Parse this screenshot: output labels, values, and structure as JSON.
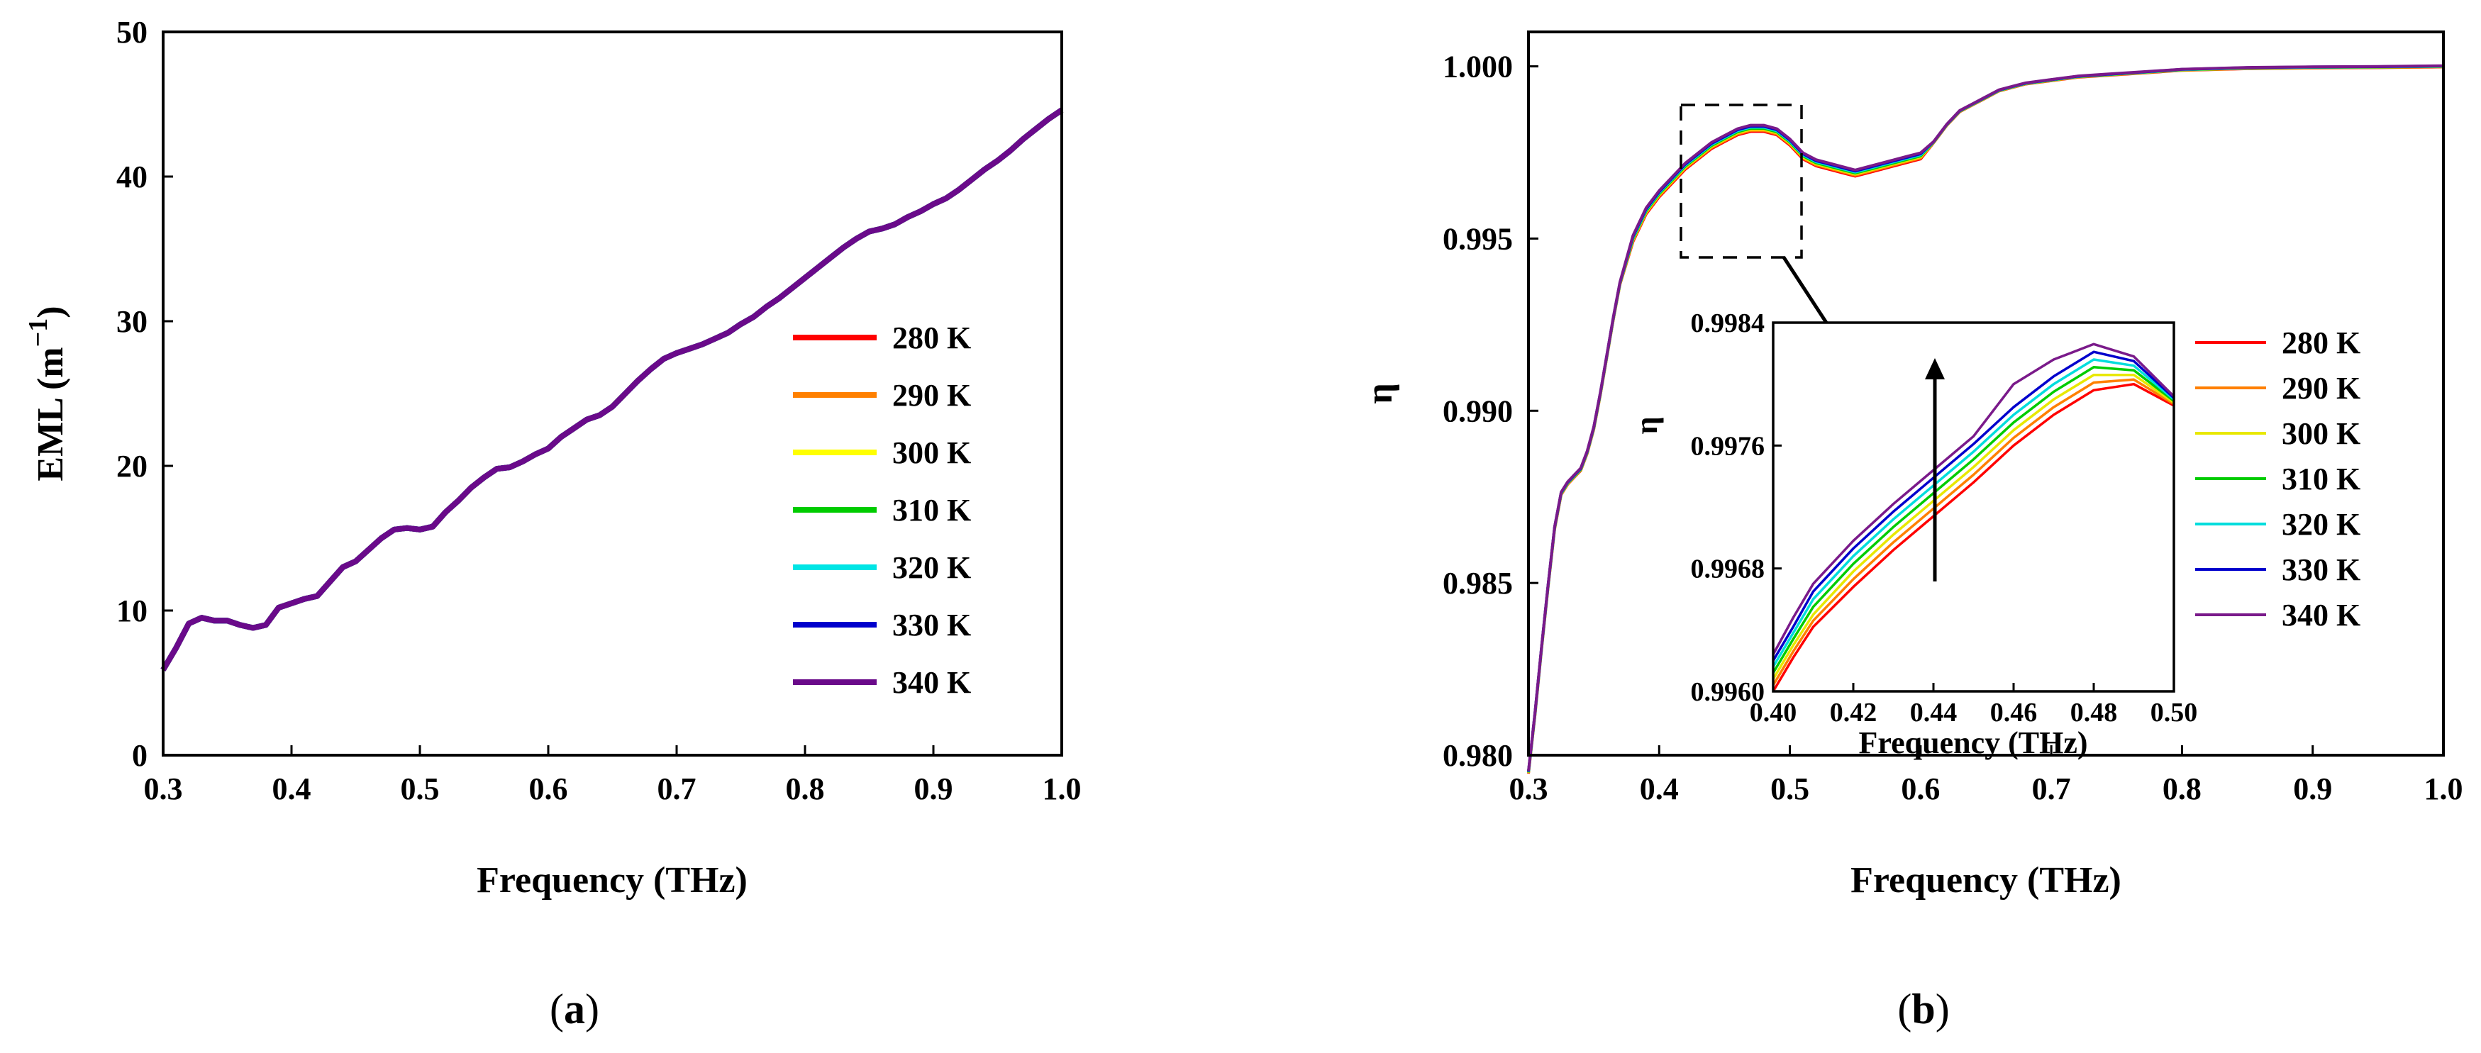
{
  "chart_data": [
    {
      "panel": "a",
      "type": "line",
      "panel_label": "a",
      "xlabel": "Frequency (THz)",
      "ylabel": "EML (m",
      "ylabel_sup": "−1",
      "ylabel_close": ")",
      "xlim": [
        0.3,
        1.0
      ],
      "ylim": [
        0,
        50
      ],
      "xticks": [
        "0.3",
        "0.4",
        "0.5",
        "0.6",
        "0.7",
        "0.8",
        "0.9",
        "1.0"
      ],
      "yticks": [
        "0",
        "10",
        "20",
        "30",
        "40",
        "50"
      ],
      "legend_position": "lower-right",
      "x": [
        0.3,
        0.31,
        0.32,
        0.33,
        0.34,
        0.35,
        0.36,
        0.37,
        0.38,
        0.39,
        0.4,
        0.41,
        0.42,
        0.43,
        0.44,
        0.45,
        0.46,
        0.47,
        0.48,
        0.49,
        0.5,
        0.51,
        0.52,
        0.53,
        0.54,
        0.55,
        0.56,
        0.57,
        0.58,
        0.59,
        0.6,
        0.61,
        0.62,
        0.63,
        0.64,
        0.65,
        0.66,
        0.67,
        0.68,
        0.69,
        0.7,
        0.71,
        0.72,
        0.73,
        0.74,
        0.75,
        0.76,
        0.77,
        0.78,
        0.79,
        0.8,
        0.81,
        0.82,
        0.83,
        0.84,
        0.85,
        0.86,
        0.87,
        0.88,
        0.89,
        0.9,
        0.91,
        0.92,
        0.93,
        0.94,
        0.95,
        0.96,
        0.97,
        0.98,
        0.99,
        1.0
      ],
      "series": [
        {
          "name": "280 K",
          "color": "#ff0000",
          "values": [
            5.9,
            7.4,
            9.1,
            9.5,
            9.3,
            9.3,
            9.0,
            8.8,
            9.0,
            10.2,
            10.5,
            10.8,
            11.0,
            12.0,
            13.0,
            13.4,
            14.2,
            15.0,
            15.6,
            15.7,
            15.6,
            15.8,
            16.8,
            17.6,
            18.5,
            19.2,
            19.8,
            19.9,
            20.3,
            20.8,
            21.2,
            22.0,
            22.6,
            23.2,
            23.5,
            24.1,
            25.0,
            25.9,
            26.7,
            27.4,
            27.8,
            28.1,
            28.4,
            28.8,
            29.2,
            29.8,
            30.3,
            31.0,
            31.6,
            32.3,
            33.0,
            33.7,
            34.4,
            35.1,
            35.7,
            36.2,
            36.4,
            36.7,
            37.2,
            37.6,
            38.1,
            38.5,
            39.1,
            39.8,
            40.5,
            41.1,
            41.8,
            42.6,
            43.3,
            44.0,
            44.6
          ]
        },
        {
          "name": "290 K",
          "color": "#ff8000",
          "values": [
            5.9,
            7.4,
            9.1,
            9.5,
            9.3,
            9.3,
            9.0,
            8.8,
            9.0,
            10.2,
            10.5,
            10.8,
            11.0,
            12.0,
            13.0,
            13.4,
            14.2,
            15.0,
            15.6,
            15.7,
            15.6,
            15.8,
            16.8,
            17.6,
            18.5,
            19.2,
            19.8,
            19.9,
            20.3,
            20.8,
            21.2,
            22.0,
            22.6,
            23.2,
            23.5,
            24.1,
            25.0,
            25.9,
            26.7,
            27.4,
            27.8,
            28.1,
            28.4,
            28.8,
            29.2,
            29.8,
            30.3,
            31.0,
            31.6,
            32.3,
            33.0,
            33.7,
            34.4,
            35.1,
            35.7,
            36.2,
            36.4,
            36.7,
            37.2,
            37.6,
            38.1,
            38.5,
            39.1,
            39.8,
            40.5,
            41.1,
            41.8,
            42.6,
            43.3,
            44.0,
            44.6
          ]
        },
        {
          "name": "300 K",
          "color": "#ffff00",
          "values": [
            5.9,
            7.4,
            9.1,
            9.5,
            9.3,
            9.3,
            9.0,
            8.8,
            9.0,
            10.2,
            10.5,
            10.8,
            11.0,
            12.0,
            13.0,
            13.4,
            14.2,
            15.0,
            15.6,
            15.7,
            15.6,
            15.8,
            16.8,
            17.6,
            18.5,
            19.2,
            19.8,
            19.9,
            20.3,
            20.8,
            21.2,
            22.0,
            22.6,
            23.2,
            23.5,
            24.1,
            25.0,
            25.9,
            26.7,
            27.4,
            27.8,
            28.1,
            28.4,
            28.8,
            29.2,
            29.8,
            30.3,
            31.0,
            31.6,
            32.3,
            33.0,
            33.7,
            34.4,
            35.1,
            35.7,
            36.2,
            36.4,
            36.7,
            37.2,
            37.6,
            38.1,
            38.5,
            39.1,
            39.8,
            40.5,
            41.1,
            41.8,
            42.6,
            43.3,
            44.0,
            44.6
          ]
        },
        {
          "name": "310 K",
          "color": "#00cc00",
          "values": [
            5.9,
            7.4,
            9.1,
            9.5,
            9.3,
            9.3,
            9.0,
            8.8,
            9.0,
            10.2,
            10.5,
            10.8,
            11.0,
            12.0,
            13.0,
            13.4,
            14.2,
            15.0,
            15.6,
            15.7,
            15.6,
            15.8,
            16.8,
            17.6,
            18.5,
            19.2,
            19.8,
            19.9,
            20.3,
            20.8,
            21.2,
            22.0,
            22.6,
            23.2,
            23.5,
            24.1,
            25.0,
            25.9,
            26.7,
            27.4,
            27.8,
            28.1,
            28.4,
            28.8,
            29.2,
            29.8,
            30.3,
            31.0,
            31.6,
            32.3,
            33.0,
            33.7,
            34.4,
            35.1,
            35.7,
            36.2,
            36.4,
            36.7,
            37.2,
            37.6,
            38.1,
            38.5,
            39.1,
            39.8,
            40.5,
            41.1,
            41.8,
            42.6,
            43.3,
            44.0,
            44.6
          ]
        },
        {
          "name": "320 K",
          "color": "#00e5e5",
          "values": [
            5.9,
            7.4,
            9.1,
            9.5,
            9.3,
            9.3,
            9.0,
            8.8,
            9.0,
            10.2,
            10.5,
            10.8,
            11.0,
            12.0,
            13.0,
            13.4,
            14.2,
            15.0,
            15.6,
            15.7,
            15.6,
            15.8,
            16.8,
            17.6,
            18.5,
            19.2,
            19.8,
            19.9,
            20.3,
            20.8,
            21.2,
            22.0,
            22.6,
            23.2,
            23.5,
            24.1,
            25.0,
            25.9,
            26.7,
            27.4,
            27.8,
            28.1,
            28.4,
            28.8,
            29.2,
            29.8,
            30.3,
            31.0,
            31.6,
            32.3,
            33.0,
            33.7,
            34.4,
            35.1,
            35.7,
            36.2,
            36.4,
            36.7,
            37.2,
            37.6,
            38.1,
            38.5,
            39.1,
            39.8,
            40.5,
            41.1,
            41.8,
            42.6,
            43.3,
            44.0,
            44.6
          ]
        },
        {
          "name": "330 K",
          "color": "#0000cc",
          "values": [
            5.9,
            7.4,
            9.1,
            9.5,
            9.3,
            9.3,
            9.0,
            8.8,
            9.0,
            10.2,
            10.5,
            10.8,
            11.0,
            12.0,
            13.0,
            13.4,
            14.2,
            15.0,
            15.6,
            15.7,
            15.6,
            15.8,
            16.8,
            17.6,
            18.5,
            19.2,
            19.8,
            19.9,
            20.3,
            20.8,
            21.2,
            22.0,
            22.6,
            23.2,
            23.5,
            24.1,
            25.0,
            25.9,
            26.7,
            27.4,
            27.8,
            28.1,
            28.4,
            28.8,
            29.2,
            29.8,
            30.3,
            31.0,
            31.6,
            32.3,
            33.0,
            33.7,
            34.4,
            35.1,
            35.7,
            36.2,
            36.4,
            36.7,
            37.2,
            37.6,
            38.1,
            38.5,
            39.1,
            39.8,
            40.5,
            41.1,
            41.8,
            42.6,
            43.3,
            44.0,
            44.6
          ]
        },
        {
          "name": "340 K",
          "color": "#6a0a8a",
          "values": [
            5.9,
            7.4,
            9.1,
            9.5,
            9.3,
            9.3,
            9.0,
            8.8,
            9.0,
            10.2,
            10.5,
            10.8,
            11.0,
            12.0,
            13.0,
            13.4,
            14.2,
            15.0,
            15.6,
            15.7,
            15.6,
            15.8,
            16.8,
            17.6,
            18.5,
            19.2,
            19.8,
            19.9,
            20.3,
            20.8,
            21.2,
            22.0,
            22.6,
            23.2,
            23.5,
            24.1,
            25.0,
            25.9,
            26.7,
            27.4,
            27.8,
            28.1,
            28.4,
            28.8,
            29.2,
            29.8,
            30.3,
            31.0,
            31.6,
            32.3,
            33.0,
            33.7,
            34.4,
            35.1,
            35.7,
            36.2,
            36.4,
            36.7,
            37.2,
            37.6,
            38.1,
            38.5,
            39.1,
            39.8,
            40.5,
            41.1,
            41.8,
            42.6,
            43.3,
            44.0,
            44.6
          ]
        }
      ]
    },
    {
      "panel": "b",
      "type": "line",
      "panel_label": "b",
      "xlabel": "Frequency (THz)",
      "ylabel": "η",
      "xlim": [
        0.3,
        1.0
      ],
      "ylim": [
        0.98,
        1.001
      ],
      "xticks": [
        "0.3",
        "0.4",
        "0.5",
        "0.6",
        "0.7",
        "0.8",
        "0.9",
        "1.0"
      ],
      "yticks": [
        "0.980",
        "0.985",
        "0.990",
        "0.995",
        "1.000"
      ],
      "legend_position": "right",
      "x": [
        0.3,
        0.305,
        0.31,
        0.315,
        0.32,
        0.325,
        0.33,
        0.335,
        0.34,
        0.345,
        0.35,
        0.355,
        0.36,
        0.365,
        0.37,
        0.38,
        0.39,
        0.4,
        0.41,
        0.42,
        0.43,
        0.44,
        0.45,
        0.46,
        0.47,
        0.48,
        0.49,
        0.5,
        0.51,
        0.52,
        0.53,
        0.54,
        0.55,
        0.56,
        0.57,
        0.58,
        0.59,
        0.6,
        0.61,
        0.62,
        0.63,
        0.64,
        0.65,
        0.66,
        0.67,
        0.68,
        0.7,
        0.72,
        0.74,
        0.76,
        0.78,
        0.8,
        0.85,
        0.9,
        0.95,
        1.0
      ],
      "base_values": [
        0.9795,
        0.9812,
        0.9831,
        0.9849,
        0.9866,
        0.9876,
        0.9879,
        0.9881,
        0.9883,
        0.9888,
        0.9895,
        0.9905,
        0.9916,
        0.9927,
        0.9937,
        0.995,
        0.9958,
        0.9963,
        0.9967,
        0.9971,
        0.9974,
        0.9977,
        0.9979,
        0.9981,
        0.9982,
        0.9982,
        0.9981,
        0.9978,
        0.9974,
        0.9972,
        0.9971,
        0.997,
        0.9969,
        0.997,
        0.9971,
        0.9972,
        0.9973,
        0.9974,
        0.9978,
        0.9983,
        0.9987,
        0.9989,
        0.9991,
        0.9993,
        0.9994,
        0.9995,
        0.9996,
        0.9997,
        0.99975,
        0.9998,
        0.99985,
        0.9999,
        0.99995,
        0.99997,
        0.99998,
        1.0
      ],
      "series": [
        {
          "name": "280 K",
          "color": "#ff0000",
          "offset": -9e-05
        },
        {
          "name": "290 K",
          "color": "#ff8000",
          "offset": -6e-05
        },
        {
          "name": "300 K",
          "color": "#e8e800",
          "offset": -3e-05
        },
        {
          "name": "310 K",
          "color": "#00cc00",
          "offset": 0.0
        },
        {
          "name": "320 K",
          "color": "#00dddd",
          "offset": 3e-05
        },
        {
          "name": "330 K",
          "color": "#0000cc",
          "offset": 6e-05
        },
        {
          "name": "340 K",
          "color": "#7a1a8a",
          "offset": 9e-05
        }
      ],
      "inset": {
        "xlabel": "Frequency (THz)",
        "ylabel": "η",
        "xlim": [
          0.4,
          0.5
        ],
        "ylim": [
          0.996,
          0.9984
        ],
        "xticks": [
          "0.40",
          "0.42",
          "0.44",
          "0.46",
          "0.48",
          "0.50"
        ],
        "yticks": [
          "0.9960",
          "0.9968",
          "0.9976",
          "0.9984"
        ],
        "x": [
          0.4,
          0.405,
          0.41,
          0.42,
          0.43,
          0.44,
          0.45,
          0.46,
          0.47,
          0.48,
          0.49,
          0.5
        ],
        "series": [
          {
            "name": "280 K",
            "color": "#ff0000",
            "values": [
              0.996,
              0.99622,
              0.99642,
              0.99668,
              0.99692,
              0.99714,
              0.99736,
              0.9976,
              0.9978,
              0.99796,
              0.998,
              0.99786
            ]
          },
          {
            "name": "290 K",
            "color": "#ff8000",
            "values": [
              0.99604,
              0.99626,
              0.99646,
              0.99673,
              0.99697,
              0.99719,
              0.99741,
              0.99765,
              0.99785,
              0.99801,
              0.99803,
              0.99787
            ]
          },
          {
            "name": "300 K",
            "color": "#e8e800",
            "values": [
              0.99608,
              0.9963,
              0.9965,
              0.99678,
              0.99702,
              0.99724,
              0.99746,
              0.9977,
              0.9979,
              0.99806,
              0.99806,
              0.99788
            ]
          },
          {
            "name": "310 K",
            "color": "#00cc00",
            "values": [
              0.99612,
              0.99634,
              0.99655,
              0.99683,
              0.99707,
              0.99729,
              0.99751,
              0.99775,
              0.99795,
              0.99811,
              0.99809,
              0.99789
            ]
          },
          {
            "name": "320 K",
            "color": "#00dddd",
            "values": [
              0.99616,
              0.99638,
              0.9966,
              0.99688,
              0.99712,
              0.99734,
              0.99756,
              0.9978,
              0.998,
              0.99816,
              0.99812,
              0.9979
            ]
          },
          {
            "name": "330 K",
            "color": "#0000cc",
            "values": [
              0.9962,
              0.99642,
              0.99665,
              0.99693,
              0.99717,
              0.99739,
              0.99761,
              0.99785,
              0.99805,
              0.99821,
              0.99815,
              0.99791
            ]
          },
          {
            "name": "340 K",
            "color": "#7a1a8a",
            "values": [
              0.99624,
              0.99648,
              0.9967,
              0.99698,
              0.99722,
              0.99744,
              0.99766,
              0.998,
              0.99816,
              0.99826,
              0.99818,
              0.99792
            ]
          }
        ]
      }
    }
  ]
}
